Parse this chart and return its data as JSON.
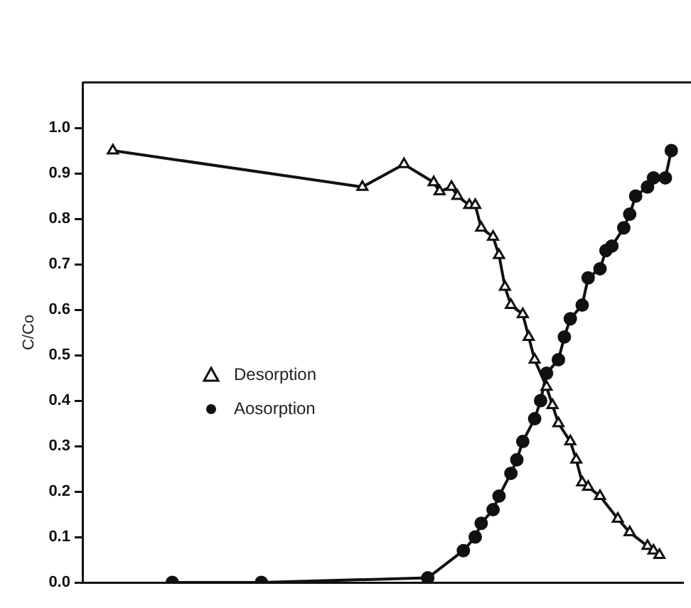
{
  "chart_data": {
    "type": "line",
    "ylabel": "C/Co",
    "categories": [
      null,
      null,
      null,
      null,
      null,
      null,
      null,
      null,
      null,
      null,
      null,
      null,
      null,
      null,
      null,
      null,
      null,
      null,
      null,
      null,
      null,
      null,
      null,
      null,
      null,
      null,
      null,
      null,
      null,
      null,
      null,
      null,
      null,
      null,
      null,
      null,
      null,
      null,
      null,
      null,
      null,
      null,
      null,
      null,
      null,
      null,
      null,
      null,
      null,
      null,
      null,
      null,
      null,
      null,
      null,
      null,
      null,
      null,
      null,
      null,
      null,
      null,
      null,
      null,
      null,
      null,
      null,
      null,
      null,
      null,
      null,
      null,
      null,
      null,
      null,
      null,
      null,
      null,
      null,
      null,
      null,
      null,
      null,
      null,
      null,
      null,
      null,
      null,
      null,
      null,
      null,
      null,
      null,
      null,
      null,
      null,
      null,
      null,
      null,
      null,
      null,
      null
    ],
    "ylim": [
      0,
      1.1
    ],
    "yticks": [
      {
        "value": 0,
        "label": "0.0"
      },
      {
        "value": 0.1,
        "label": "0.1"
      },
      {
        "value": 0.2,
        "label": "0.2"
      },
      {
        "value": 0.3,
        "label": "0.3"
      },
      {
        "value": 0.4,
        "label": "0.4"
      },
      {
        "value": 0.5,
        "label": "0.5"
      },
      {
        "value": 0.6,
        "label": "0.6"
      },
      {
        "value": 0.7,
        "label": "0.7"
      },
      {
        "value": 0.8,
        "label": "0.8"
      },
      {
        "value": 0.9,
        "label": "0.9"
      },
      {
        "value": 1,
        "label": "1.0"
      }
    ],
    "tick_labels": "y",
    "legend": "left",
    "line_style": "solid",
    "series": [
      {
        "name": "Desorption",
        "color": "#111111",
        "marker": "triangle",
        "values": [
          null,
          null,
          null,
          null,
          null,
          0.95,
          null,
          null,
          null,
          null,
          null,
          null,
          null,
          null,
          null,
          null,
          null,
          null,
          null,
          null,
          null,
          null,
          null,
          null,
          null,
          null,
          null,
          null,
          null,
          null,
          null,
          null,
          null,
          null,
          null,
          null,
          null,
          null,
          null,
          null,
          null,
          null,
          null,
          null,
          null,
          null,
          null,
          0.87,
          null,
          null,
          null,
          null,
          null,
          null,
          0.92,
          null,
          null,
          null,
          null,
          0.88,
          0.86,
          null,
          0.87,
          0.85,
          null,
          0.83,
          0.83,
          0.78,
          null,
          0.76,
          0.72,
          0.65,
          0.61,
          null,
          0.59,
          0.54,
          0.49,
          null,
          0.43,
          0.39,
          0.35,
          null,
          0.31,
          0.27,
          0.22,
          0.21,
          null,
          0.19,
          null,
          null,
          0.14,
          null,
          0.11,
          null,
          null,
          0.08,
          0.07,
          0.06,
          null,
          null,
          null,
          null
        ]
      },
      {
        "name": "Aosorption",
        "color": "#111111",
        "marker": "circle",
        "values": [
          null,
          null,
          null,
          null,
          null,
          null,
          null,
          null,
          null,
          null,
          null,
          null,
          null,
          null,
          null,
          0,
          null,
          null,
          null,
          null,
          null,
          null,
          null,
          null,
          null,
          null,
          null,
          null,
          null,
          null,
          0,
          null,
          null,
          null,
          null,
          null,
          null,
          null,
          null,
          null,
          null,
          null,
          null,
          null,
          null,
          null,
          null,
          null,
          null,
          null,
          null,
          null,
          null,
          null,
          null,
          null,
          null,
          null,
          0.01,
          null,
          null,
          null,
          null,
          null,
          0.07,
          null,
          0.1,
          0.13,
          null,
          0.16,
          0.19,
          null,
          0.24,
          0.27,
          0.31,
          null,
          0.36,
          0.4,
          0.46,
          null,
          0.49,
          0.54,
          0.58,
          null,
          0.61,
          0.67,
          null,
          0.69,
          0.73,
          0.74,
          null,
          0.78,
          0.81,
          0.85,
          null,
          0.87,
          0.89,
          null,
          0.89,
          0.95,
          null,
          null
        ]
      }
    ]
  }
}
